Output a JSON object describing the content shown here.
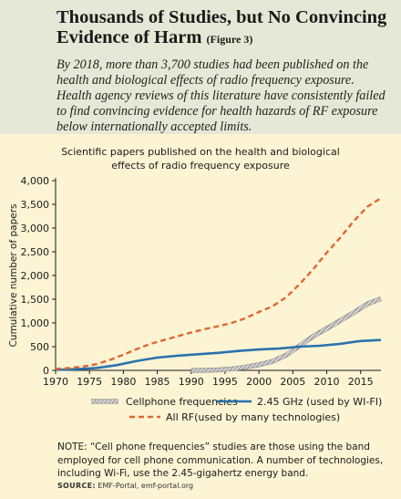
{
  "header": {
    "title": "Thousands of Studies, but No Convincing Evidence of Harm",
    "figure_label": "(Figure 3)",
    "intro": "By 2018, more than 3,700 studies had been published on the health and biological effects of radio frequency exposure. Health agency reviews of this literature have consistently failed to find convincing evidence for health hazards of RF exposure below internationally accepted limits."
  },
  "chart_data": {
    "type": "line",
    "title": "Scientific papers published on the health and biological effects of radio frequency exposure",
    "title_lines": [
      "Scientific papers published on the health and biological",
      "effects of radio frequency exposure"
    ],
    "xlabel": "",
    "ylabel": "Cumulative number of papers",
    "xlim": [
      1970,
      2018
    ],
    "ylim": [
      0,
      4000
    ],
    "x_ticks": [
      1970,
      1975,
      1980,
      1985,
      1990,
      1995,
      2000,
      2005,
      2010,
      2015
    ],
    "x_tick_labels": [
      "1970",
      "1975",
      "1980",
      "1985",
      "1990",
      "1995",
      "2000",
      "2005",
      "2010",
      "2015"
    ],
    "y_ticks": [
      0,
      500,
      1000,
      1500,
      2000,
      2500,
      3000,
      3500,
      4000
    ],
    "y_tick_labels": [
      "0",
      "500",
      "1,000",
      "1,500",
      "2,000",
      "2,500",
      "3,000",
      "3,500",
      "4,000"
    ],
    "grid": false,
    "legend_position": "bottom",
    "series": [
      {
        "name": "All RF(used by many technologies)",
        "style": "dashed",
        "color": "#e0662f",
        "x": [
          1970,
          1972,
          1974,
          1976,
          1978,
          1980,
          1982,
          1984,
          1986,
          1988,
          1990,
          1992,
          1994,
          1996,
          1998,
          2000,
          2002,
          2004,
          2006,
          2008,
          2010,
          2012,
          2014,
          2016,
          2018
        ],
        "y": [
          30,
          50,
          80,
          130,
          220,
          330,
          450,
          560,
          640,
          720,
          800,
          870,
          930,
          1000,
          1100,
          1230,
          1350,
          1540,
          1820,
          2130,
          2480,
          2800,
          3150,
          3450,
          3630
        ]
      },
      {
        "name": "2.45 GHz (used by WI-FI)",
        "style": "solid",
        "color": "#2a72ad",
        "x": [
          1970,
          1973,
          1976,
          1979,
          1982,
          1985,
          1988,
          1991,
          1994,
          1997,
          2000,
          2003,
          2006,
          2009,
          2012,
          2015,
          2018
        ],
        "y": [
          10,
          25,
          50,
          110,
          200,
          270,
          310,
          340,
          370,
          410,
          440,
          460,
          500,
          520,
          560,
          620,
          640
        ]
      },
      {
        "name": "Cellphone frequencies",
        "style": "hatched",
        "color": "#9a9a9a",
        "x": [
          1990,
          1992,
          1994,
          1996,
          1998,
          2000,
          2002,
          2004,
          2006,
          2008,
          2010,
          2012,
          2014,
          2016,
          2018
        ],
        "y": [
          0,
          2,
          10,
          30,
          70,
          120,
          190,
          320,
          520,
          720,
          880,
          1050,
          1220,
          1400,
          1510
        ]
      }
    ],
    "legend": [
      {
        "label": "Cellphone frequencies",
        "style": "hatched"
      },
      {
        "label": "2.45 GHz (used by WI-FI)",
        "style": "solid"
      },
      {
        "label": "All RF(used by many technologies)",
        "style": "dashed"
      }
    ]
  },
  "note": "NOTE: “Cell phone frequencies” studies are those using the band employed for cell phone communication. A number of technologies, including Wi-Fi, use the 2.45-gigahertz energy band.",
  "source": {
    "label": "SOURCE:",
    "text": "EMF-Portal, emf-portal.org"
  },
  "colors": {
    "header_bg": "#e6e8d7",
    "panel_bg": "#fdf4d4",
    "accent_orange": "#e0662f",
    "accent_blue": "#2a72ad"
  }
}
